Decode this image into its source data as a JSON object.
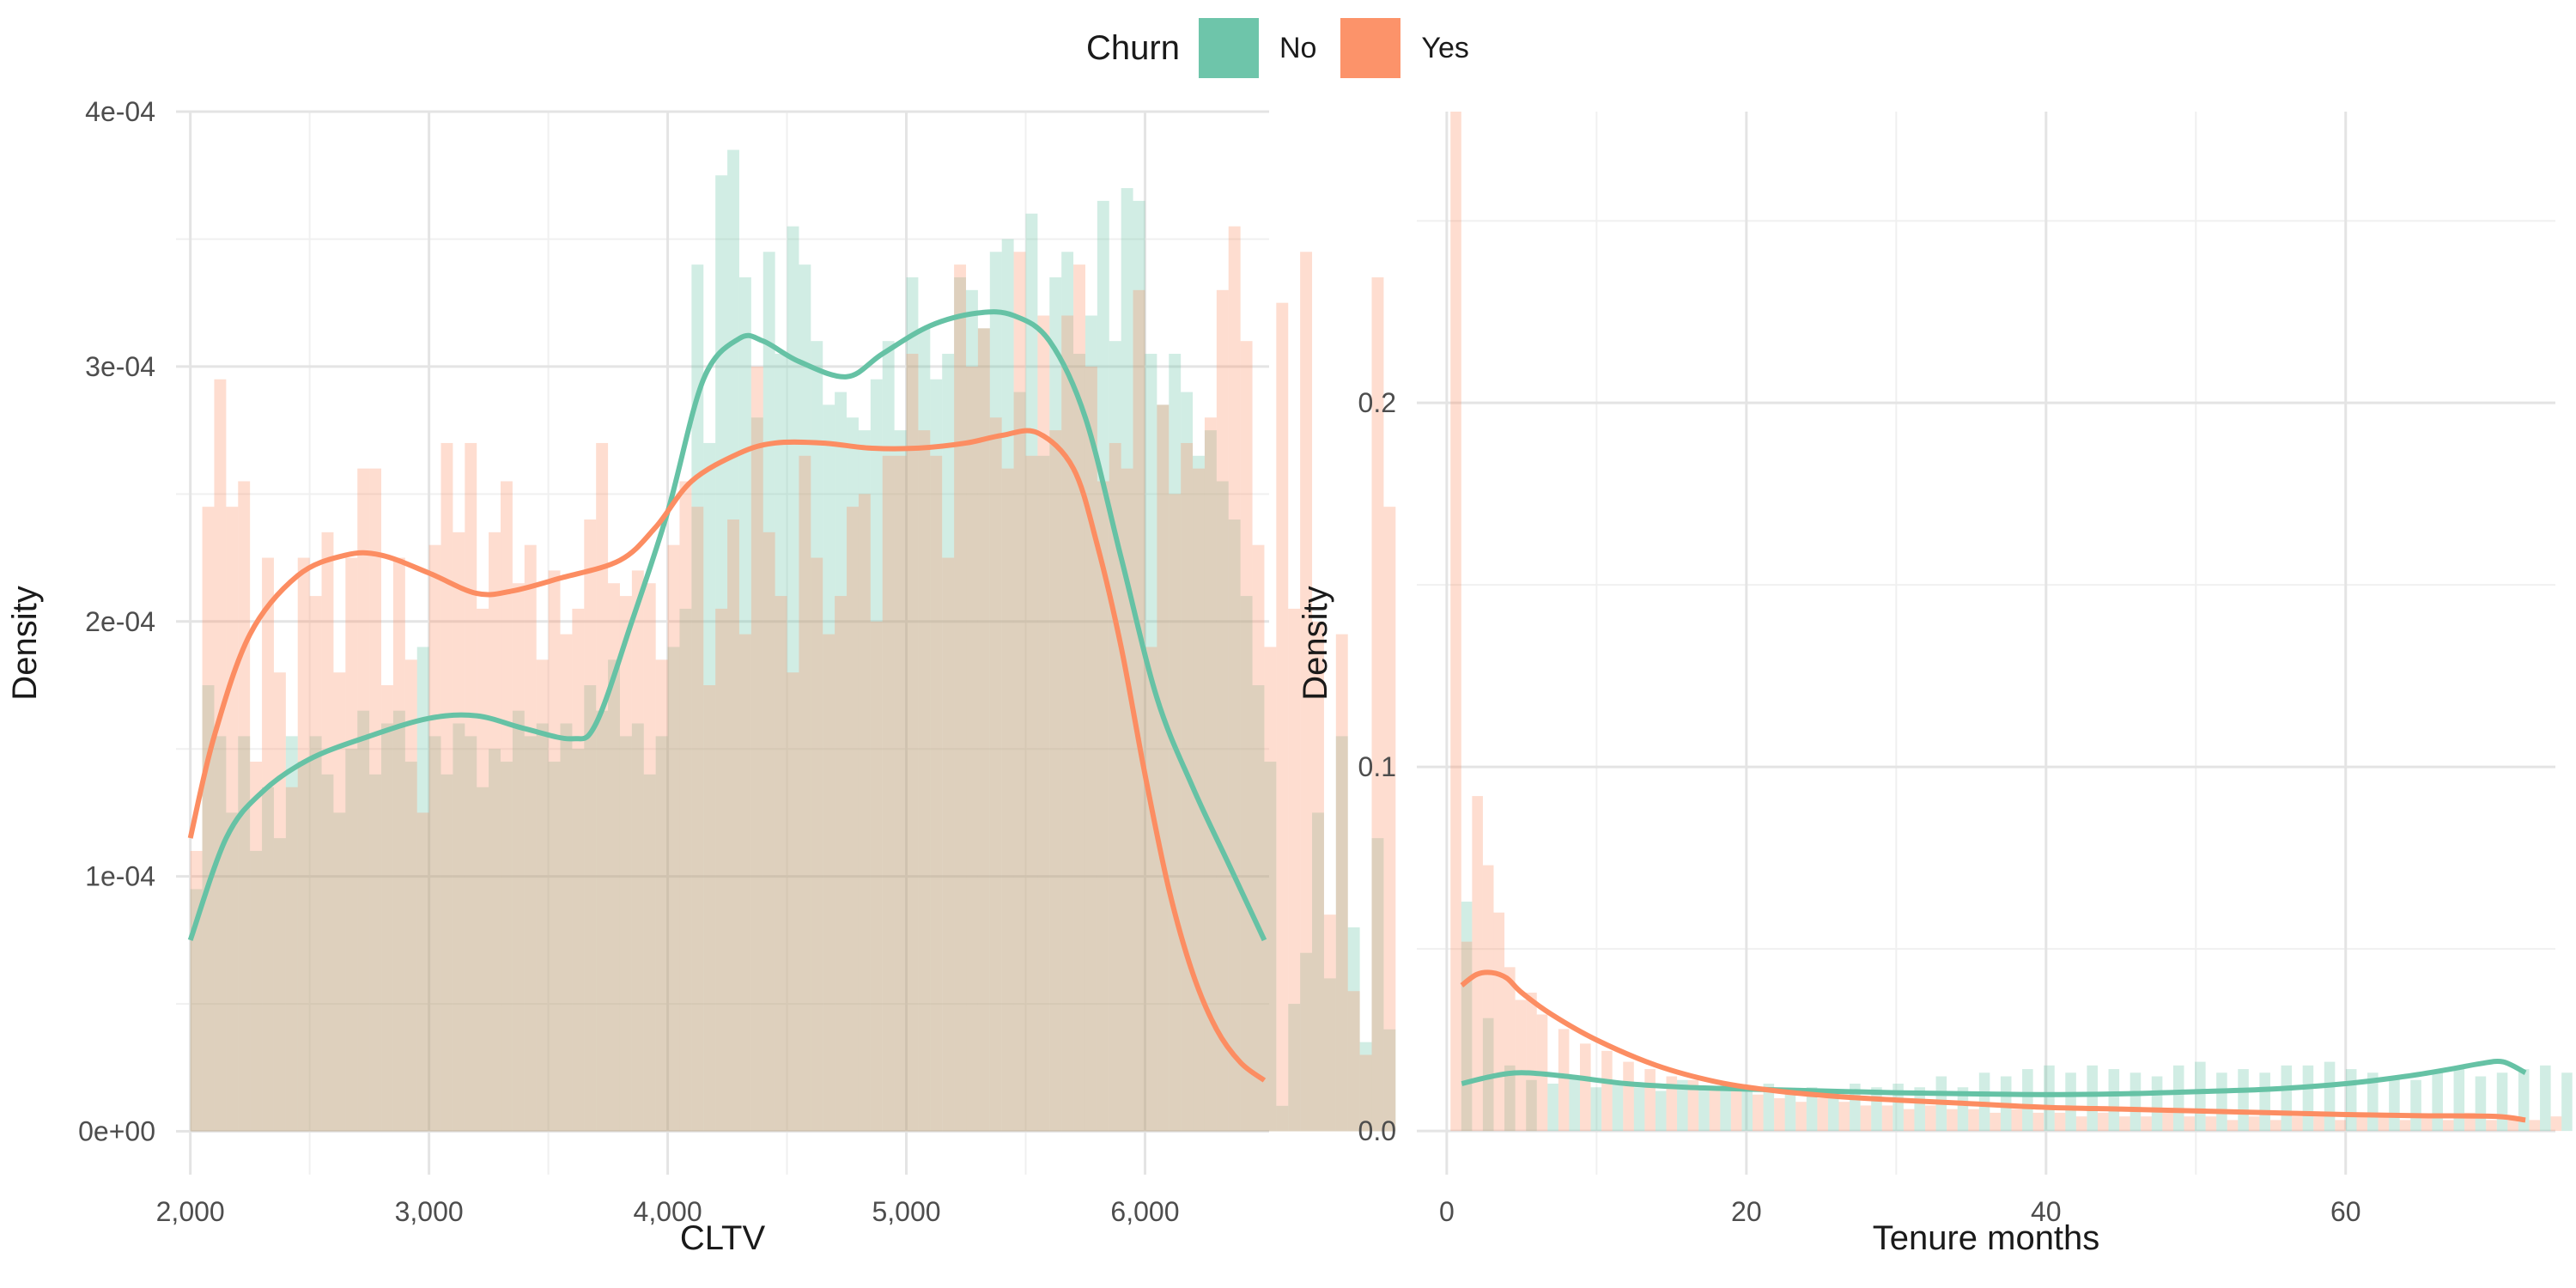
{
  "legend": {
    "title": "Churn",
    "items": [
      {
        "label": "No",
        "color": "#66C2A5"
      },
      {
        "label": "Yes",
        "color": "#FC8D62"
      }
    ]
  },
  "chart_data": [
    {
      "type": "histogram with density overlay",
      "xlabel": "CLTV",
      "ylabel": "Density",
      "xlim": [
        1940,
        6520
      ],
      "ylim": [
        -1.7e-05,
        0.0004
      ],
      "xticks": [
        2000,
        3000,
        4000,
        5000,
        6000
      ],
      "xtick_labels": [
        "2,000",
        "3,000",
        "4,000",
        "5,000",
        "6,000"
      ],
      "yticks": [
        0,
        0.0001,
        0.0002,
        0.0003,
        0.0004
      ],
      "ytick_labels": [
        "0e+00",
        "1e-04",
        "2e-04",
        "3e-04",
        "4e-04"
      ],
      "grid": true,
      "bins": {
        "start": 2000,
        "width": 50
      },
      "series": [
        {
          "name": "No",
          "color": "#66C2A5",
          "histogram": [
            9.5e-05,
            0.000175,
            0.000155,
            0.000125,
            0.000155,
            0.00011,
            0.000135,
            0.000115,
            0.000155,
            0.000145,
            0.000155,
            0.00014,
            0.000125,
            0.00015,
            0.000165,
            0.00014,
            0.00016,
            0.000165,
            0.000145,
            0.00019,
            0.000155,
            0.00014,
            0.00016,
            0.000155,
            0.000135,
            0.00015,
            0.000145,
            0.000165,
            0.000155,
            0.00016,
            0.000145,
            0.00016,
            0.00015,
            0.000175,
            0.000165,
            0.000185,
            0.000155,
            0.00016,
            0.00014,
            0.000155,
            0.00019,
            0.000205,
            0.00034,
            0.00027,
            0.000375,
            0.000385,
            0.000335,
            0.00028,
            0.000345,
            0.000305,
            0.000355,
            0.00034,
            0.00031,
            0.000285,
            0.00029,
            0.00028,
            0.000275,
            0.000295,
            0.00031,
            0.000275,
            0.000335,
            0.000315,
            0.000295,
            0.000305,
            0.000335,
            0.00033,
            0.000315,
            0.000345,
            0.00035,
            0.00029,
            0.00036,
            0.000265,
            0.000335,
            0.000345,
            0.000305,
            0.00032,
            0.000365,
            0.00031,
            0.00037,
            0.000365,
            0.000305,
            0.000285,
            0.000305,
            0.00029,
            0.000265,
            0.000275,
            0.000255,
            0.00024,
            0.00021,
            0.000175,
            0.000145,
            1e-05,
            5e-05,
            7e-05,
            0.000125,
            6e-05,
            0.000155,
            8e-05,
            3.5e-05,
            0.000115,
            4e-05
          ],
          "density_curve": {
            "x": [
              2000,
              2150,
              2300,
              2500,
              2750,
              3000,
              3200,
              3400,
              3600,
              3700,
              3850,
              4000,
              4150,
              4300,
              4400,
              4550,
              4750,
              4900,
              5100,
              5300,
              5450,
              5600,
              5750,
              5900,
              6050,
              6200,
              6350,
              6500
            ],
            "y": [
              7.5e-05,
              0.000115,
              0.000133,
              0.000146,
              0.000155,
              0.000162,
              0.000163,
              0.000158,
              0.000154,
              0.00016,
              0.0002,
              0.000243,
              0.000295,
              0.000311,
              0.00031,
              0.000302,
              0.000296,
              0.000305,
              0.000316,
              0.000321,
              0.00032,
              0.00031,
              0.00028,
              0.000225,
              0.00017,
              0.000135,
              0.000105,
              7.5e-05
            ]
          }
        },
        {
          "name": "Yes",
          "color": "#FC8D62",
          "histogram": [
            0.00011,
            0.000245,
            0.000295,
            0.000245,
            0.000255,
            0.000145,
            0.000225,
            0.00018,
            0.000135,
            0.000225,
            0.00021,
            0.000235,
            0.00018,
            0.000225,
            0.00026,
            0.00026,
            0.000175,
            0.000225,
            0.000185,
            0.000125,
            0.00023,
            0.00027,
            0.000235,
            0.00027,
            0.000205,
            0.000235,
            0.000255,
            0.000215,
            0.00023,
            0.000185,
            0.00022,
            0.000195,
            0.000205,
            0.00024,
            0.00027,
            0.000215,
            0.00021,
            0.00022,
            0.000215,
            0.000185,
            0.00023,
            0.000255,
            0.000245,
            0.000175,
            0.000205,
            0.00024,
            0.000195,
            0.0003,
            0.000235,
            0.00021,
            0.00018,
            0.000265,
            0.000225,
            0.000195,
            0.00021,
            0.000245,
            0.00025,
            0.0002,
            0.000265,
            0.000265,
            0.000305,
            0.000275,
            0.000265,
            0.000225,
            0.00034,
            0.0003,
            0.000315,
            0.00028,
            0.00026,
            0.000345,
            0.000265,
            0.00032,
            0.000275,
            0.00032,
            0.00034,
            0.0003,
            0.000255,
            0.00027,
            0.00026,
            0.00033,
            0.00019,
            0.000285,
            0.00025,
            0.00027,
            0.00026,
            0.00028,
            0.00033,
            0.000355,
            0.00031,
            0.00023,
            0.00019,
            0.000325,
            0.000205,
            0.000345,
            0.0002,
            8.5e-05,
            0.000195,
            5.5e-05,
            3e-05,
            0.000335,
            0.000245
          ],
          "density_curve": {
            "x": [
              2000,
              2100,
              2250,
              2450,
              2650,
              2800,
              3000,
              3200,
              3350,
              3550,
              3800,
              3950,
              4100,
              4300,
              4450,
              4650,
              4850,
              5050,
              5250,
              5400,
              5550,
              5700,
              5800,
              5900,
              6000,
              6100,
              6200,
              6300,
              6400,
              6500
            ],
            "y": [
              0.000115,
              0.000155,
              0.000195,
              0.000218,
              0.000226,
              0.000226,
              0.000219,
              0.000211,
              0.000212,
              0.000217,
              0.000224,
              0.000237,
              0.000255,
              0.000266,
              0.00027,
              0.00027,
              0.000268,
              0.000268,
              0.00027,
              0.000273,
              0.000274,
              0.00026,
              0.00023,
              0.00019,
              0.00014,
              9.5e-05,
              6.2e-05,
              4e-05,
              2.7e-05,
              2e-05
            ]
          }
        }
      ]
    },
    {
      "type": "histogram with density overlay",
      "xlabel": "Tenure months",
      "ylabel": "Density",
      "xlim": [
        -2,
        74
      ],
      "ylim": [
        -0.012,
        0.28
      ],
      "xticks": [
        0,
        20,
        40,
        60
      ],
      "xtick_labels": [
        "0",
        "20",
        "40",
        "60"
      ],
      "yticks": [
        0,
        0.1,
        0.2
      ],
      "ytick_labels": [
        "0.0",
        "0.1",
        "0.2"
      ],
      "grid": true,
      "bins": {
        "start": 0.25,
        "width": 0.72
      },
      "series": [
        {
          "name": "No",
          "color": "#66C2A5",
          "histogram": [
            0.0,
            0.063,
            0.0,
            0.031,
            0.0,
            0.018,
            0.0,
            0.014,
            0.0,
            0.013,
            0.0,
            0.015,
            0.0,
            0.012,
            0.0,
            0.013,
            0.0,
            0.012,
            0.0,
            0.011,
            0.0,
            0.014,
            0.0,
            0.012,
            0.0,
            0.013,
            0.0,
            0.012,
            0.0,
            0.013,
            0.0,
            0.011,
            0.0,
            0.012,
            0.0,
            0.011,
            0.0,
            0.013,
            0.0,
            0.012,
            0.0,
            0.013,
            0.0,
            0.012,
            0.0,
            0.015,
            0.0,
            0.012,
            0.0,
            0.016,
            0.0,
            0.015,
            0.0,
            0.017,
            0.0,
            0.018,
            0.0,
            0.016,
            0.0,
            0.018,
            0.0,
            0.017,
            0.0,
            0.016,
            0.0,
            0.015,
            0.0,
            0.018,
            0.0,
            0.019,
            0.0,
            0.016,
            0.0,
            0.017,
            0.0,
            0.016,
            0.0,
            0.018,
            0.0,
            0.018,
            0.0,
            0.019,
            0.0,
            0.017,
            0.0,
            0.016,
            0.0,
            0.015,
            0.0,
            0.014,
            0.0,
            0.016,
            0.0,
            0.017,
            0.0,
            0.015,
            0.0,
            0.016,
            0.0,
            0.017,
            0.0,
            0.018,
            0.0,
            0.016,
            0.0,
            0.015
          ],
          "density_curve": {
            "x": [
              1,
              3,
              5,
              8,
              12,
              16,
              20,
              25,
              30,
              35,
              40,
              45,
              50,
              55,
              60,
              64,
              67,
              69,
              70.5,
              72
            ],
            "y": [
              0.013,
              0.015,
              0.016,
              0.015,
              0.013,
              0.012,
              0.0115,
              0.011,
              0.0105,
              0.0102,
              0.01,
              0.0102,
              0.0108,
              0.0115,
              0.013,
              0.015,
              0.017,
              0.0185,
              0.019,
              0.016
            ]
          }
        },
        {
          "name": "Yes",
          "color": "#FC8D62",
          "histogram": [
            0.28,
            0.052,
            0.092,
            0.073,
            0.06,
            0.045,
            0.036,
            0.038,
            0.032,
            0.0,
            0.028,
            0.0,
            0.024,
            0.0,
            0.022,
            0.0,
            0.019,
            0.0,
            0.017,
            0.0,
            0.015,
            0.0,
            0.014,
            0.0,
            0.012,
            0.0,
            0.011,
            0.0,
            0.01,
            0.0,
            0.009,
            0.0,
            0.008,
            0.0,
            0.009,
            0.0,
            0.008,
            0.0,
            0.007,
            0.0,
            0.007,
            0.0,
            0.006,
            0.0,
            0.007,
            0.0,
            0.006,
            0.0,
            0.006,
            0.0,
            0.005,
            0.0,
            0.006,
            0.0,
            0.005,
            0.0,
            0.005,
            0.0,
            0.004,
            0.0,
            0.005,
            0.0,
            0.004,
            0.0,
            0.004,
            0.0,
            0.005,
            0.0,
            0.004,
            0.0,
            0.004,
            0.0,
            0.003,
            0.0,
            0.004,
            0.0,
            0.003,
            0.0,
            0.004,
            0.0,
            0.004,
            0.0,
            0.003,
            0.0,
            0.005,
            0.0,
            0.004,
            0.0,
            0.003,
            0.0,
            0.004,
            0.0,
            0.003,
            0.0,
            0.005,
            0.0,
            0.003,
            0.0,
            0.004,
            0.0,
            0.003,
            0.0,
            0.004
          ],
          "density_curve": {
            "x": [
              1,
              2,
              3,
              4,
              5,
              7,
              10,
              14,
              18,
              22,
              26,
              30,
              35,
              40,
              45,
              50,
              55,
              60,
              65,
              70,
              72
            ],
            "y": [
              0.04,
              0.043,
              0.0435,
              0.042,
              0.038,
              0.032,
              0.025,
              0.018,
              0.0135,
              0.011,
              0.0095,
              0.0085,
              0.0075,
              0.0065,
              0.006,
              0.0055,
              0.005,
              0.0045,
              0.0042,
              0.004,
              0.003
            ]
          }
        }
      ]
    }
  ]
}
